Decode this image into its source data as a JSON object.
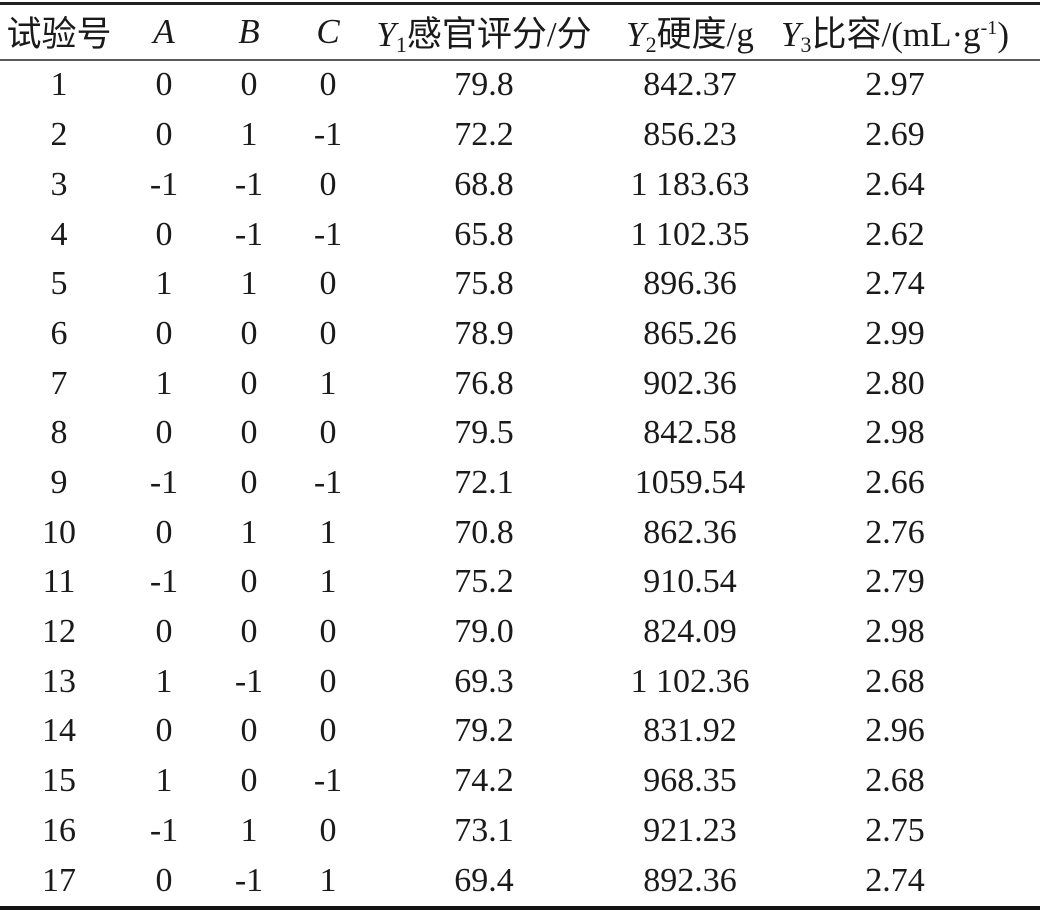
{
  "table": {
    "columns": [
      {
        "label": "试验号"
      },
      {
        "symbol": "A"
      },
      {
        "symbol": "B"
      },
      {
        "symbol": "C"
      },
      {
        "symbol": "Y",
        "sub": "1",
        "label": "感官评分/分"
      },
      {
        "symbol": "Y",
        "sub": "2",
        "label": "硬度/g"
      },
      {
        "symbol": "Y",
        "sub": "3",
        "label": "比容/(mL·g",
        "sup": "-1",
        "suffix": ")"
      }
    ],
    "rows": [
      [
        "1",
        "0",
        "0",
        "0",
        "79.8",
        "842.37",
        "2.97"
      ],
      [
        "2",
        "0",
        "1",
        "-1",
        "72.2",
        "856.23",
        "2.69"
      ],
      [
        "3",
        "-1",
        "-1",
        "0",
        "68.8",
        "1 183.63",
        "2.64"
      ],
      [
        "4",
        "0",
        "-1",
        "-1",
        "65.8",
        "1 102.35",
        "2.62"
      ],
      [
        "5",
        "1",
        "1",
        "0",
        "75.8",
        "896.36",
        "2.74"
      ],
      [
        "6",
        "0",
        "0",
        "0",
        "78.9",
        "865.26",
        "2.99"
      ],
      [
        "7",
        "1",
        "0",
        "1",
        "76.8",
        "902.36",
        "2.80"
      ],
      [
        "8",
        "0",
        "0",
        "0",
        "79.5",
        "842.58",
        "2.98"
      ],
      [
        "9",
        "-1",
        "0",
        "-1",
        "72.1",
        "1059.54",
        "2.66"
      ],
      [
        "10",
        "0",
        "1",
        "1",
        "70.8",
        "862.36",
        "2.76"
      ],
      [
        "11",
        "-1",
        "0",
        "1",
        "75.2",
        "910.54",
        "2.79"
      ],
      [
        "12",
        "0",
        "0",
        "0",
        "79.0",
        "824.09",
        "2.98"
      ],
      [
        "13",
        "1",
        "-1",
        "0",
        "69.3",
        "1 102.36",
        "2.68"
      ],
      [
        "14",
        "0",
        "0",
        "0",
        "79.2",
        "831.92",
        "2.96"
      ],
      [
        "15",
        "1",
        "0",
        "-1",
        "74.2",
        "968.35",
        "2.68"
      ],
      [
        "16",
        "-1",
        "1",
        "0",
        "73.1",
        "921.23",
        "2.75"
      ],
      [
        "17",
        "0",
        "-1",
        "1",
        "69.4",
        "892.36",
        "2.74"
      ]
    ]
  },
  "colors": {
    "text": "#1a1a1a",
    "rule_top": "#1f1f1f",
    "rule_header": "#5a5a5a",
    "rule_bottom": "#141414",
    "background": "#ffffff"
  }
}
